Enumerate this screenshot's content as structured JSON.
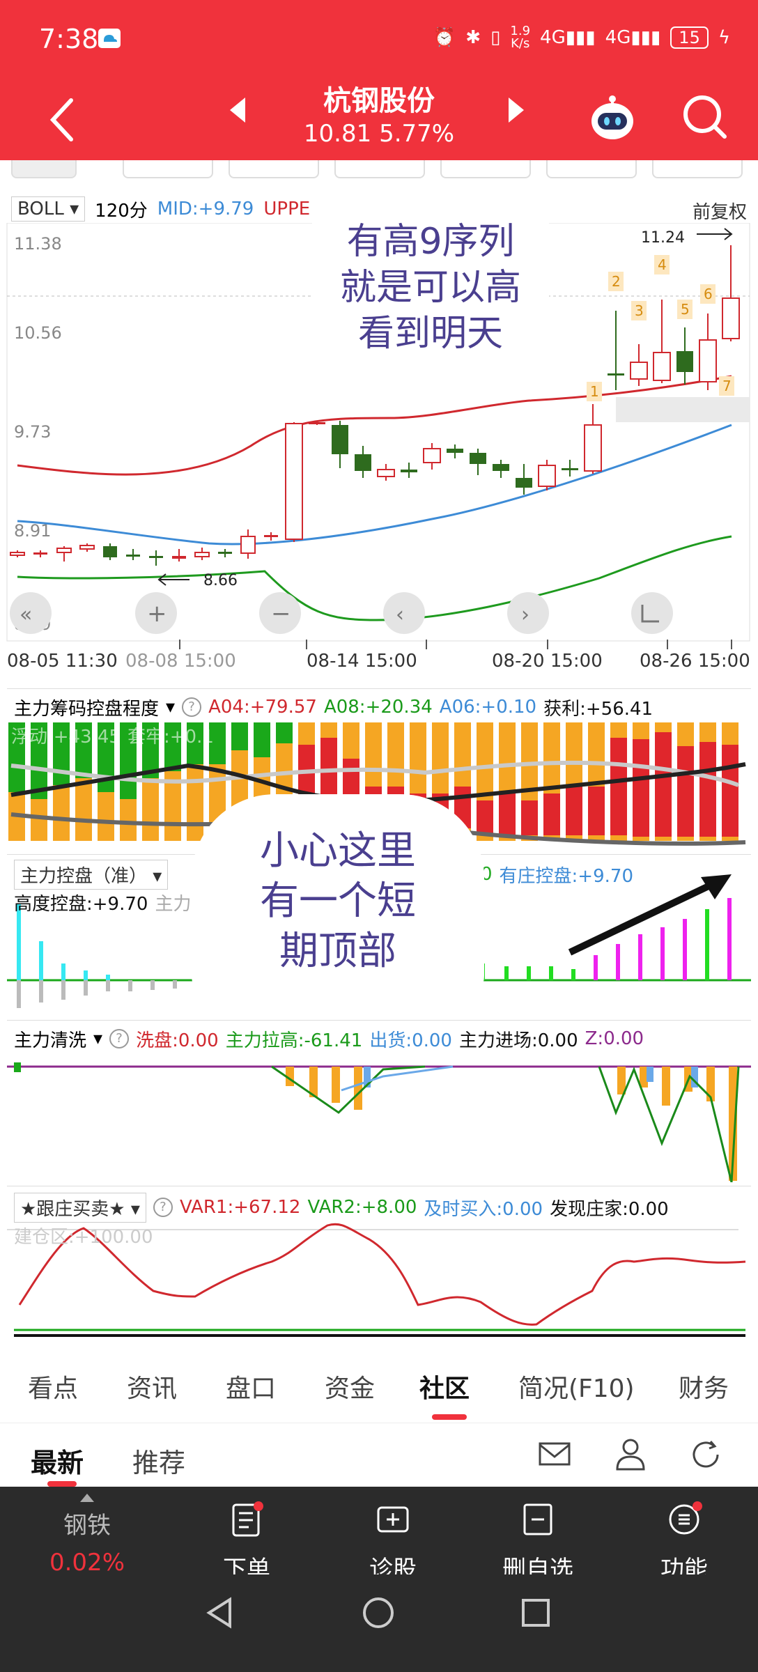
{
  "status": {
    "time": "7:38",
    "speed_top": "1.9",
    "speed_bottom": "K/s",
    "battery": "15"
  },
  "header": {
    "title": "杭钢股份",
    "price_line": "10.81 5.77%"
  },
  "chart": {
    "indicator": "BOLL",
    "period": "120分",
    "mid": "MID:+9.79",
    "upper": "UPPE",
    "adjust": "前复权",
    "y_labels": [
      "11.38",
      "10.56",
      "9.73",
      "8.91",
      "8.09"
    ],
    "high_label": "11.24",
    "low_label": "8.66",
    "dates": [
      "08-05 11:30",
      "08-08 15:00",
      "08-14 15:00",
      "08-20 15:00",
      "08-26 15:00"
    ],
    "seq_labels": [
      "1",
      "2",
      "3",
      "4",
      "5",
      "6",
      "7"
    ],
    "note": [
      "有高9序列",
      "就是可以高",
      "看到明天"
    ]
  },
  "panel1": {
    "name": "主力筹码控盘程度",
    "a04": "A04:+79.57",
    "a08": "A08:+20.34",
    "a06": "A06:+0.10",
    "profit": "获利:+56.41",
    "float": "浮动:+43.45",
    "trap": "套牢:+0.1"
  },
  "panel2": {
    "name": "主力控盘（准）",
    "high": "高度控盘:+9.70",
    "zhu": "主力",
    "zero": "0",
    "zhuang": "有庄控盘:+9.70",
    "note": [
      "小心这里",
      "有一个短",
      "期顶部"
    ]
  },
  "panel3": {
    "name": "主力清洗",
    "wash": "洗盘:0.00",
    "pull": "主力拉高:-61.41",
    "out": "出货:0.00",
    "enter": "主力进场:0.00",
    "z": "Z:0.00"
  },
  "panel4": {
    "name": "★跟庄买卖★",
    "var1": "VAR1:+67.12",
    "var2": "VAR2:+8.00",
    "buy": "及时买入:0.00",
    "find": "发现庄家:0.00",
    "build": "建仓区:+100.00"
  },
  "tabs": [
    "看点",
    "资讯",
    "盘口",
    "资金",
    "社区",
    "简况(F10)",
    "财务"
  ],
  "sub_tabs": [
    "最新",
    "推荐"
  ],
  "bottom": {
    "sector": "钢铁",
    "sector_change": "0.02%",
    "order": "下单",
    "diagnose": "诊股",
    "remove": "删自选",
    "func": "功能"
  },
  "colors": {
    "brand": "#f0323c",
    "up": "#d0282e",
    "down": "#2e6b1e",
    "mid": "#3d8bd6",
    "annot": "#4a3f8f"
  }
}
